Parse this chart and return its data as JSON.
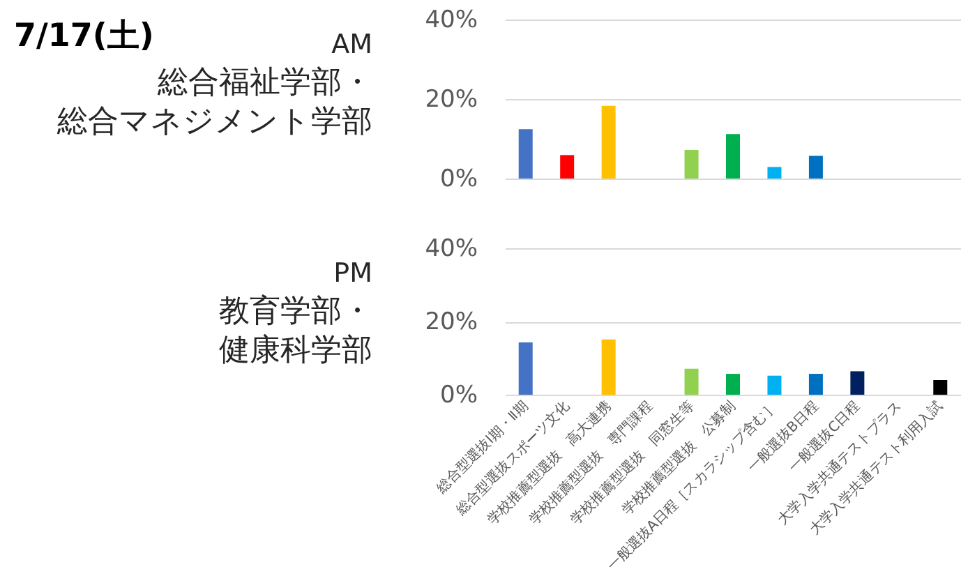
{
  "chart_data": [
    {
      "type": "other",
      "title": "7/17(土)"
    },
    {
      "type": "bar",
      "subtitle": "AM",
      "annotations": [
        "総合福祉学部・",
        "総合マネジメント学部"
      ],
      "categories": [
        null,
        null,
        null,
        null,
        null,
        null,
        null,
        null,
        null,
        null,
        null
      ],
      "values": [
        12.4,
        5.9,
        18.3,
        null,
        7.2,
        11.2,
        2.9,
        5.7,
        null,
        null,
        null
      ],
      "colors": [
        "#4472c4",
        "#ff0000",
        "#ffc000",
        null,
        "#92d050",
        "#00b050",
        "#00b0f0",
        "#0070c0",
        null,
        null,
        null
      ],
      "ylim": [
        0,
        40
      ],
      "yticks": [
        {
          "value": 0,
          "label": "0%"
        },
        {
          "value": 20,
          "label": "20%"
        },
        {
          "value": 40,
          "label": "40%"
        }
      ],
      "grid": "y"
    },
    {
      "type": "bar",
      "subtitle": "PM",
      "annotations": [
        "教育学部・",
        "健康科学部"
      ],
      "categories": [
        "総合型選抜Ⅰ期・Ⅱ期",
        "総合型選抜スポーツ文化",
        "学校推薦型選抜　高大連携",
        "学校推薦型選抜　専門課程",
        "学校推薦型選抜　同窓生等",
        "学校推薦型選抜　公募制",
        "一般選抜A日程［スカラシップ含む］",
        "一般選抜B日程",
        "一般選抜C日程",
        "大学入学共通テストプラス",
        "大学入学共通テスト利用入試"
      ],
      "values": [
        14.3,
        null,
        15.1,
        null,
        7.1,
        5.7,
        5.2,
        5.7,
        6.4,
        null,
        4.0
      ],
      "colors": [
        "#4472c4",
        null,
        "#ffc000",
        null,
        "#92d050",
        "#00b050",
        "#00b0f0",
        "#0070c0",
        "#002060",
        null,
        "#000000"
      ],
      "ylim": [
        0,
        40
      ],
      "yticks": [
        {
          "value": 0,
          "label": "0%"
        },
        {
          "value": 20,
          "label": "20%"
        },
        {
          "value": 40,
          "label": "40%"
        }
      ],
      "grid": "y"
    }
  ]
}
